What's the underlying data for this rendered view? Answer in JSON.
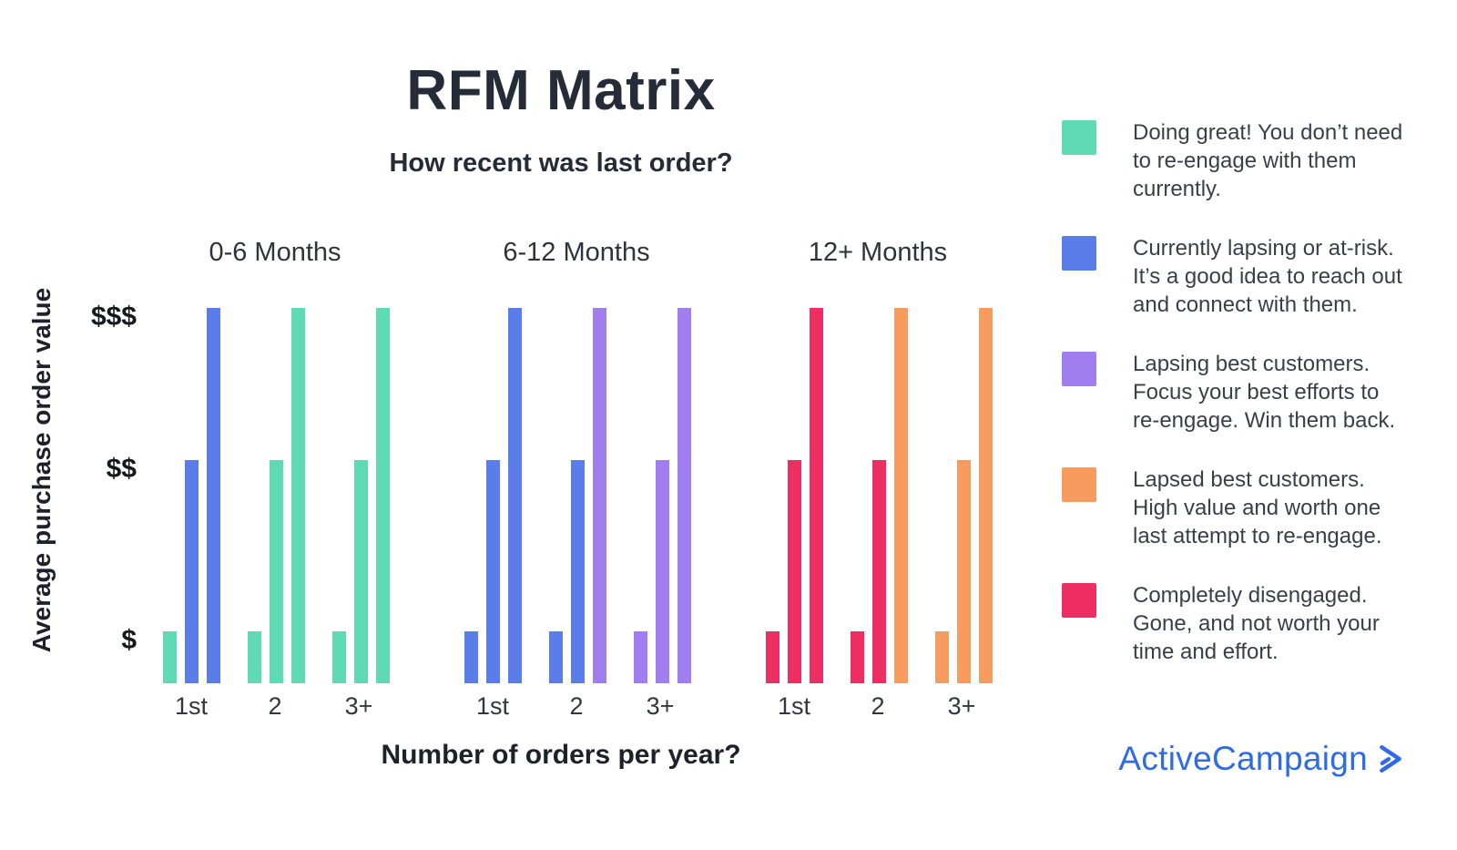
{
  "header": {
    "title": "RFM Matrix",
    "subtitle": "How recent was last order?"
  },
  "palette": {
    "teal": "#5FDBB3",
    "blue": "#5B7DE9",
    "purple": "#A07EF0",
    "orange": "#F79B5E",
    "pink": "#EE2D62",
    "title_dark": "#252B37",
    "text_gray": "#3A3F47",
    "logo_blue": "#2F6BE5"
  },
  "chart_data": {
    "type": "grouped_bar",
    "x_axis_title": "Number of orders per year?",
    "y_axis_title": "Average purchase order value",
    "y_ticks": [
      {
        "label": "$$$",
        "level": 3
      },
      {
        "label": "$$",
        "level": 2
      },
      {
        "label": "$",
        "level": 1
      }
    ],
    "value_levels": {
      "1": "$",
      "2": "$$",
      "3": "$$$"
    },
    "groups": [
      {
        "label": "0-6 Months",
        "clusters": [
          {
            "label": "1st",
            "bars": [
              {
                "level": 1,
                "color": "teal"
              },
              {
                "level": 2,
                "color": "blue"
              },
              {
                "level": 3,
                "color": "blue"
              }
            ]
          },
          {
            "label": "2",
            "bars": [
              {
                "level": 1,
                "color": "teal"
              },
              {
                "level": 2,
                "color": "teal"
              },
              {
                "level": 3,
                "color": "teal"
              }
            ]
          },
          {
            "label": "3+",
            "bars": [
              {
                "level": 1,
                "color": "teal"
              },
              {
                "level": 2,
                "color": "teal"
              },
              {
                "level": 3,
                "color": "teal"
              }
            ]
          }
        ]
      },
      {
        "label": "6-12 Months",
        "clusters": [
          {
            "label": "1st",
            "bars": [
              {
                "level": 1,
                "color": "blue"
              },
              {
                "level": 2,
                "color": "blue"
              },
              {
                "level": 3,
                "color": "blue"
              }
            ]
          },
          {
            "label": "2",
            "bars": [
              {
                "level": 1,
                "color": "blue"
              },
              {
                "level": 2,
                "color": "blue"
              },
              {
                "level": 3,
                "color": "purple"
              }
            ]
          },
          {
            "label": "3+",
            "bars": [
              {
                "level": 1,
                "color": "purple"
              },
              {
                "level": 2,
                "color": "purple"
              },
              {
                "level": 3,
                "color": "purple"
              }
            ]
          }
        ]
      },
      {
        "label": "12+ Months",
        "clusters": [
          {
            "label": "1st",
            "bars": [
              {
                "level": 1,
                "color": "pink"
              },
              {
                "level": 2,
                "color": "pink"
              },
              {
                "level": 3,
                "color": "pink"
              }
            ]
          },
          {
            "label": "2",
            "bars": [
              {
                "level": 1,
                "color": "pink"
              },
              {
                "level": 2,
                "color": "pink"
              },
              {
                "level": 3,
                "color": "orange"
              }
            ]
          },
          {
            "label": "3+",
            "bars": [
              {
                "level": 1,
                "color": "orange"
              },
              {
                "level": 2,
                "color": "orange"
              },
              {
                "level": 3,
                "color": "orange"
              }
            ]
          }
        ]
      }
    ]
  },
  "legend": {
    "items": [
      {
        "color": "teal",
        "text": "Doing great! You don’t need\nto re-engage with them\ncurrently."
      },
      {
        "color": "blue",
        "text": "Currently lapsing or at-risk.\nIt’s a good idea to reach out\nand connect with them."
      },
      {
        "color": "purple",
        "text": "Lapsing best customers.\nFocus your best efforts to\nre-engage. Win them back."
      },
      {
        "color": "orange",
        "text": "Lapsed best customers.\nHigh value and worth one\nlast attempt to re-engage."
      },
      {
        "color": "pink",
        "text": "Completely disengaged.\nGone, and not worth your\ntime and effort."
      }
    ]
  },
  "footer": {
    "logo_text": "ActiveCampaign"
  }
}
